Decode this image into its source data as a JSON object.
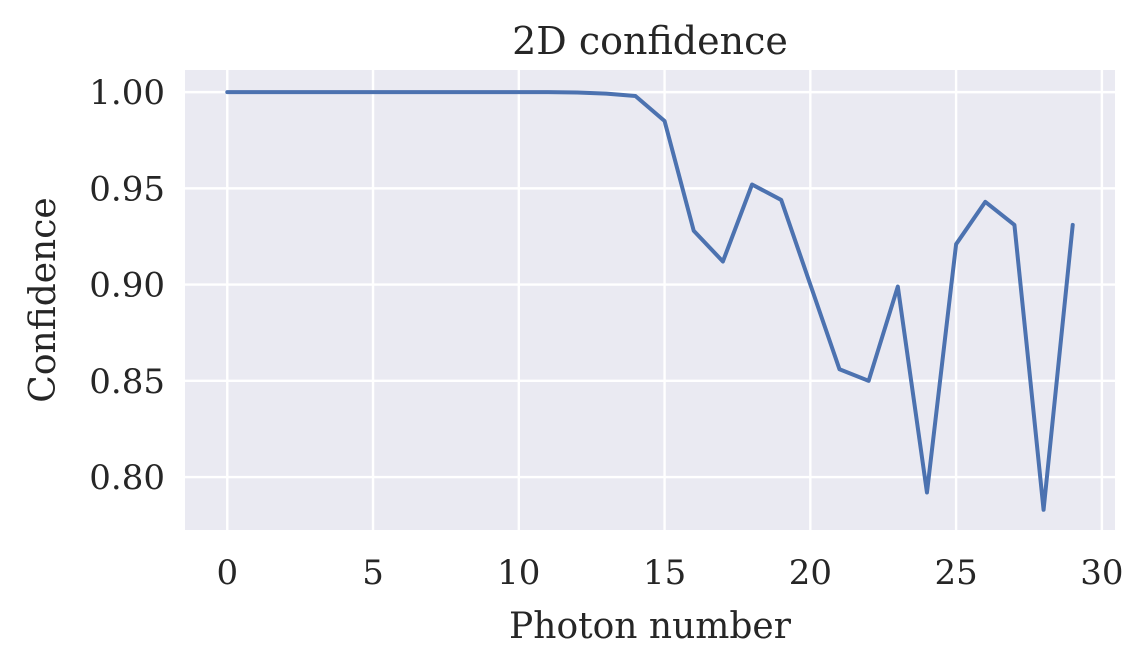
{
  "chart_data": {
    "type": "line",
    "title": "2D confidence",
    "xlabel": "Photon number",
    "ylabel": "Confidence",
    "xlim": [
      -1.45,
      30.45
    ],
    "ylim": [
      0.7725,
      1.0115
    ],
    "xticks": [
      0,
      5,
      10,
      15,
      20,
      25,
      30
    ],
    "xtick_labels": [
      "0",
      "5",
      "10",
      "15",
      "20",
      "25",
      "30"
    ],
    "yticks": [
      0.8,
      0.85,
      0.9,
      0.95,
      1.0
    ],
    "ytick_labels": [
      "0.80",
      "0.85",
      "0.90",
      "0.95",
      "1.00"
    ],
    "grid": true,
    "series": [
      {
        "color": "#4c72b0",
        "x": [
          0,
          1,
          2,
          3,
          4,
          5,
          6,
          7,
          8,
          9,
          10,
          11,
          12,
          13,
          14,
          15,
          16,
          17,
          18,
          19,
          20,
          21,
          22,
          23,
          24,
          25,
          26,
          27,
          28,
          29
        ],
        "y": [
          1.0,
          1.0,
          1.0,
          1.0,
          1.0,
          1.0,
          1.0,
          1.0,
          1.0,
          1.0,
          1.0,
          1.0,
          0.9998,
          0.9992,
          0.998,
          0.985,
          0.928,
          0.912,
          0.952,
          0.944,
          0.9,
          0.856,
          0.85,
          0.899,
          0.792,
          0.921,
          0.943,
          0.931,
          0.783,
          0.931
        ]
      }
    ]
  }
}
